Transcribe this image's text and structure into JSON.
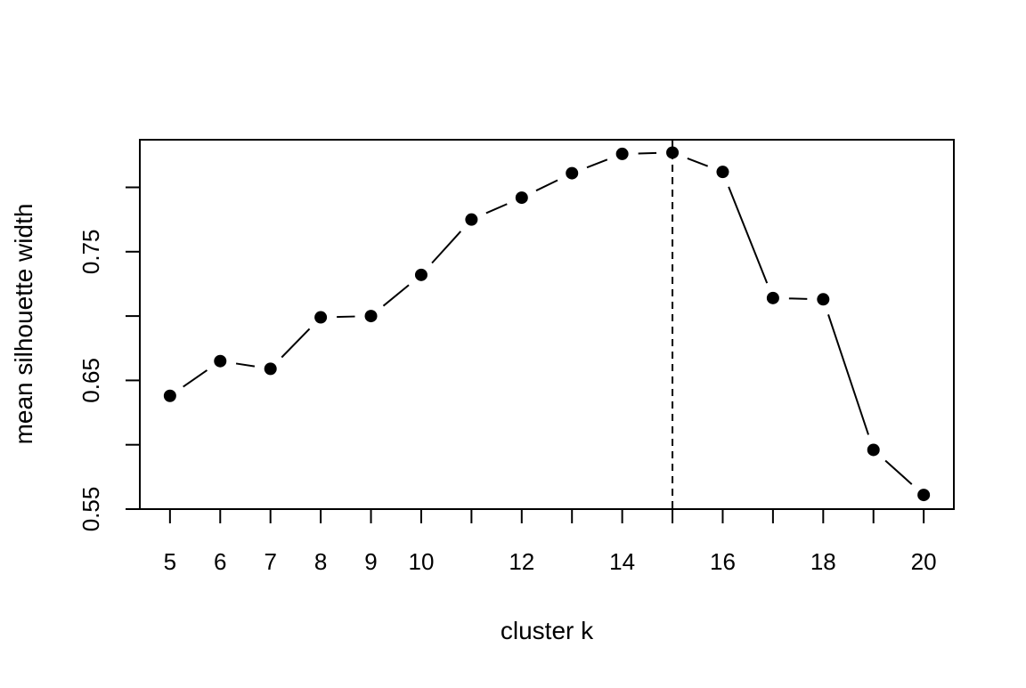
{
  "chart_data": {
    "type": "line",
    "title": "",
    "xlabel": "cluster k",
    "ylabel": "mean silhouette width",
    "x_tick_labels": [
      "5",
      "6",
      "7",
      "8",
      "9",
      "10",
      "12",
      "14",
      "16",
      "18",
      "20"
    ],
    "y_tick_labels": [
      "0.55",
      "0.65",
      "0.75"
    ],
    "x_ticks": [
      5,
      6,
      7,
      8,
      9,
      10,
      11,
      12,
      13,
      14,
      15,
      16,
      17,
      18,
      19,
      20
    ],
    "y_ticks": [
      0.55,
      0.6,
      0.65,
      0.7,
      0.75,
      0.8
    ],
    "xlim": [
      4.4,
      20.6
    ],
    "ylim": [
      0.55,
      0.837
    ],
    "vline_x": 15,
    "vline_style": "dashed",
    "grid": false,
    "series": [
      {
        "x": [
          5,
          6,
          7,
          8,
          9,
          10,
          11,
          12,
          13,
          14,
          15,
          16,
          17,
          18,
          19,
          20
        ],
        "y": [
          0.638,
          0.665,
          0.659,
          0.699,
          0.7,
          0.732,
          0.775,
          0.792,
          0.811,
          0.826,
          0.827,
          0.812,
          0.714,
          0.713,
          0.596,
          0.561
        ],
        "marker": "filled-circle",
        "color": "#000000"
      }
    ]
  }
}
